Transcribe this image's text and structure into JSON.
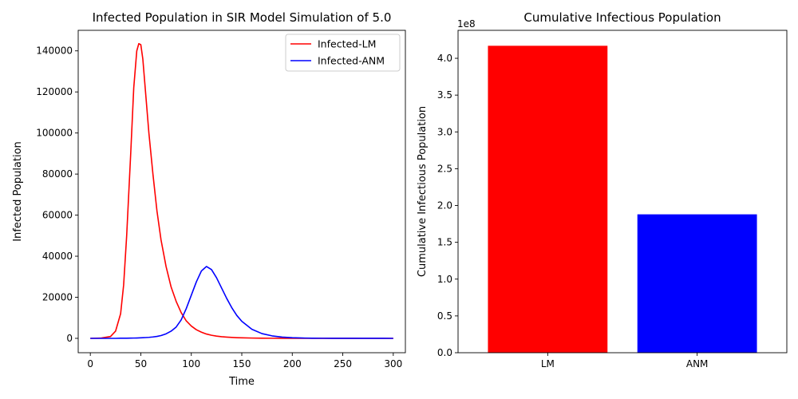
{
  "chart_data": [
    {
      "type": "line",
      "title": "Infected Population in SIR Model Simulation of 5.0",
      "xlabel": "Time",
      "ylabel": "Infected Population",
      "xlim": [
        -12,
        312
      ],
      "ylim": [
        -7000,
        150000
      ],
      "xticks": [
        0,
        50,
        100,
        150,
        200,
        250,
        300
      ],
      "yticks": [
        0,
        20000,
        40000,
        60000,
        80000,
        100000,
        120000,
        140000
      ],
      "legend": "top-right",
      "grid": false,
      "x": [
        0,
        10,
        20,
        25,
        30,
        33,
        36,
        40,
        43,
        46,
        48,
        50,
        52,
        55,
        58,
        62,
        66,
        70,
        75,
        80,
        85,
        90,
        95,
        100,
        105,
        110,
        115,
        120,
        125,
        130,
        135,
        140,
        145,
        150,
        160,
        170,
        180,
        190,
        200,
        210,
        220,
        230,
        240,
        250,
        260,
        270,
        280,
        290,
        300
      ],
      "series": [
        {
          "name": "Infected-LM",
          "color": "#ff0000",
          "values": [
            0,
            100,
            900,
            3500,
            12000,
            26000,
            50000,
            90000,
            122000,
            140000,
            143500,
            143000,
            136000,
            118000,
            100000,
            80000,
            62000,
            48000,
            35000,
            25000,
            18000,
            12500,
            8500,
            6000,
            4200,
            3000,
            2100,
            1500,
            1100,
            800,
            600,
            450,
            330,
            250,
            140,
            80,
            45,
            25,
            15,
            8,
            5,
            3,
            2,
            1,
            1,
            0,
            0,
            0,
            0
          ]
        },
        {
          "name": "Infected-ANM",
          "color": "#0000ff",
          "values": [
            0,
            0,
            0,
            0,
            50,
            60,
            80,
            110,
            140,
            180,
            210,
            250,
            300,
            380,
            480,
            680,
            950,
            1350,
            2200,
            3500,
            5500,
            9000,
            14500,
            21000,
            27500,
            32800,
            35000,
            33500,
            29500,
            24500,
            19500,
            15000,
            11200,
            8300,
            4400,
            2300,
            1200,
            600,
            300,
            150,
            80,
            40,
            20,
            10,
            5,
            3,
            2,
            1,
            0
          ]
        }
      ]
    },
    {
      "type": "bar",
      "title": "Cumulative Infectious Population",
      "xlabel": "",
      "ylabel": "Cumulative Infectious Population",
      "offset_label": "1e8",
      "categories": [
        "LM",
        "ANM"
      ],
      "values": [
        4.17,
        1.88
      ],
      "unit_multiplier": 100000000,
      "colors": [
        "#ff0000",
        "#0000ff"
      ],
      "ylim": [
        0,
        4.38
      ],
      "yticks": [
        "0.0",
        "0.5",
        "1.0",
        "1.5",
        "2.0",
        "2.5",
        "3.0",
        "3.5",
        "4.0"
      ],
      "grid": false
    }
  ]
}
